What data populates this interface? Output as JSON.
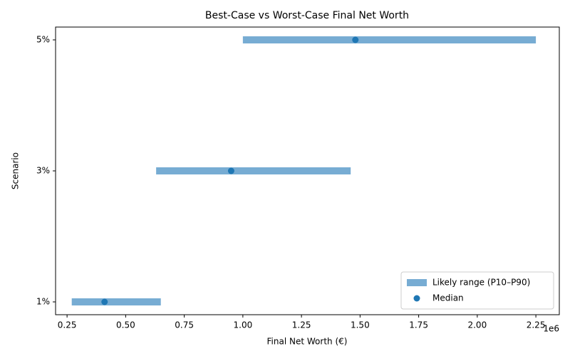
{
  "chart_data": {
    "type": "range",
    "title": "Best-Case vs Worst-Case Final Net Worth",
    "xlabel": "Final Net Worth (€)",
    "ylabel": "Scenario",
    "x_offset_label": "1e6",
    "categories": [
      "1%",
      "3%",
      "5%"
    ],
    "series": [
      {
        "name": "Likely range (P10–P90)",
        "color": "#77acd3",
        "low": [
          0.27,
          0.63,
          1.0
        ],
        "high": [
          0.65,
          1.46,
          2.25
        ]
      },
      {
        "name": "Median",
        "color": "#1f77b4",
        "values": [
          0.41,
          0.95,
          1.48
        ]
      }
    ],
    "xlim": [
      0.201,
      2.35
    ],
    "xticks": [
      {
        "value": 0.25,
        "label": "0.25"
      },
      {
        "value": 0.5,
        "label": "0.50"
      },
      {
        "value": 0.75,
        "label": "0.75"
      },
      {
        "value": 1.0,
        "label": "1.00"
      },
      {
        "value": 1.25,
        "label": "1.25"
      },
      {
        "value": 1.5,
        "label": "1.50"
      },
      {
        "value": 1.75,
        "label": "1.75"
      },
      {
        "value": 2.0,
        "label": "2.00"
      },
      {
        "value": 2.25,
        "label": "2.25"
      }
    ],
    "legend": "lower right"
  }
}
